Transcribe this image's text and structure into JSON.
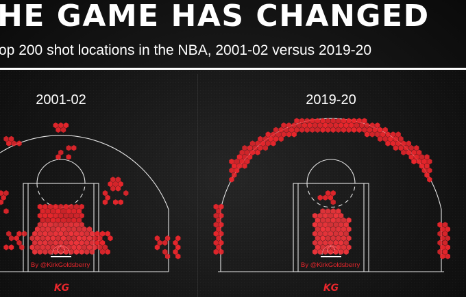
{
  "header": {
    "title": "HE GAME HAS CHANGED",
    "subtitle": "op 200 shot locations in the NBA, 2001-02 versus 2019-20"
  },
  "colors": {
    "background": "#141414",
    "text": "#ffffff",
    "court_lines": "#e6e6e6",
    "shot_marker": "#e8262c",
    "shot_marker_hot": "#f0353b",
    "credit": "#e8262c"
  },
  "chart_data": [
    {
      "type": "hexbin-shot-chart",
      "title": "2001-02",
      "credit": "By @KirkGoldsberry",
      "logo": "KG",
      "zones": [
        {
          "zone": "restricted area / paint",
          "share": "dense"
        },
        {
          "zone": "short mid-range",
          "share": "moderate"
        },
        {
          "zone": "long mid-range",
          "share": "scattered"
        },
        {
          "zone": "above-break three",
          "share": "sparse"
        },
        {
          "zone": "corner three",
          "share": "sparse"
        }
      ]
    },
    {
      "type": "hexbin-shot-chart",
      "title": "2019-20",
      "credit": "By @KirkGoldsberry",
      "logo": "KG",
      "zones": [
        {
          "zone": "restricted area / paint",
          "share": "dense"
        },
        {
          "zone": "mid-range",
          "share": "none"
        },
        {
          "zone": "above-break three",
          "share": "dense arc"
        },
        {
          "zone": "corner three",
          "share": "moderate"
        }
      ]
    }
  ]
}
